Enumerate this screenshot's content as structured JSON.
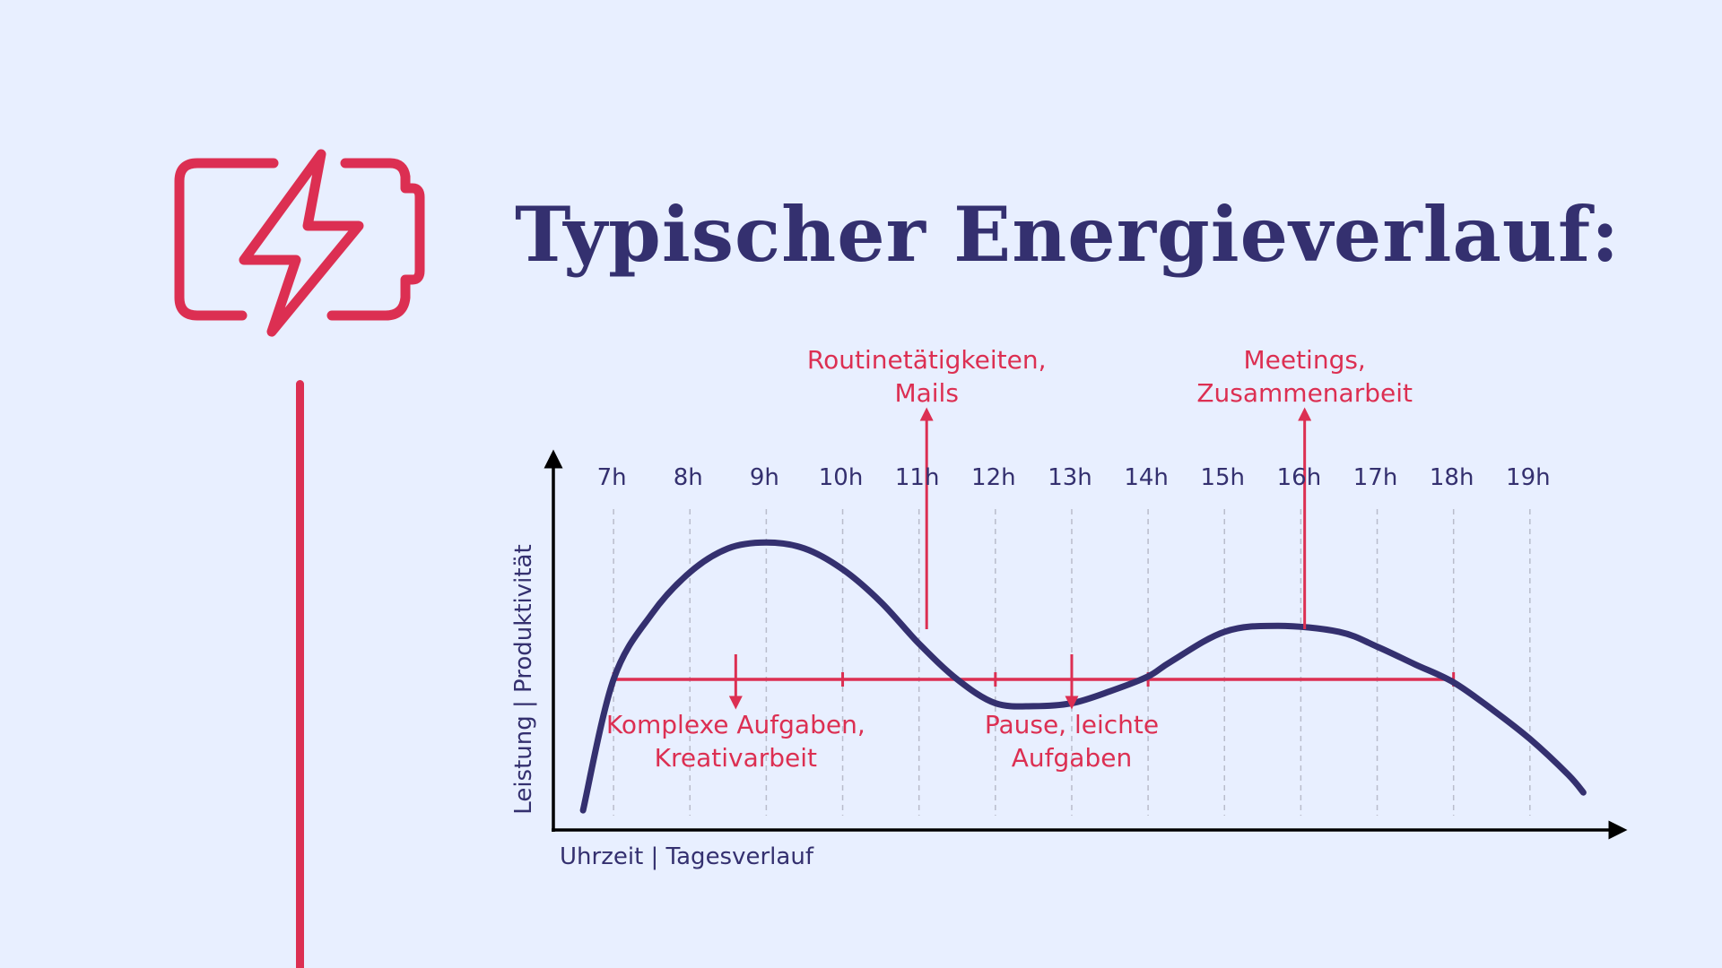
{
  "title": "Typischer Energieverlauf:",
  "icons": {
    "battery": "battery-charging-icon"
  },
  "colors": {
    "background": "#e8efff",
    "navy": "#34306f",
    "accent": "#dc2f52",
    "grid": "#b9bccb",
    "axis": "#000000"
  },
  "chart_data": {
    "type": "line",
    "title": "",
    "xlabel": "Uhrzeit | Tagesverlauf",
    "ylabel": "Leistung | Produktivität",
    "tick_labels": [
      "7h",
      "8h",
      "9h",
      "10h",
      "11h",
      "12h",
      "13h",
      "14h",
      "15h",
      "16h",
      "17h",
      "18h",
      "19h"
    ],
    "x_range": [
      6.2,
      20.2
    ],
    "y_range": [
      0,
      100
    ],
    "grid": "vertical dashed lines at each hour",
    "baseline": {
      "y": 50,
      "x_start": 7,
      "x_end": 18,
      "markers": [
        7,
        10,
        12,
        14,
        18
      ]
    },
    "series": [
      {
        "points": [
          [
            6.6,
            6
          ],
          [
            7.0,
            50
          ],
          [
            7.5,
            72
          ],
          [
            8.0,
            86
          ],
          [
            8.5,
            94
          ],
          [
            9.0,
            96
          ],
          [
            9.5,
            94
          ],
          [
            10.0,
            87
          ],
          [
            10.5,
            76
          ],
          [
            11.0,
            62
          ],
          [
            11.5,
            50
          ],
          [
            12.0,
            42
          ],
          [
            12.5,
            41
          ],
          [
            13.0,
            42
          ],
          [
            13.5,
            46
          ],
          [
            14.0,
            51
          ],
          [
            14.3,
            56
          ],
          [
            15.0,
            66
          ],
          [
            15.7,
            68
          ],
          [
            16.5,
            66
          ],
          [
            17.0,
            61
          ],
          [
            17.5,
            55
          ],
          [
            18.0,
            49
          ],
          [
            18.5,
            40
          ],
          [
            19.0,
            30
          ],
          [
            19.5,
            18
          ],
          [
            19.7,
            12
          ]
        ]
      }
    ],
    "annotations": [
      {
        "text_lines": [
          "Komplexe Aufgaben,",
          "Kreativarbeit"
        ],
        "x": 8.6,
        "direction": "down"
      },
      {
        "text_lines": [
          "Routinetätigkeiten,",
          "Mails"
        ],
        "x": 11.1,
        "direction": "up"
      },
      {
        "text_lines": [
          "Pause, leichte",
          "Aufgaben"
        ],
        "x": 13.0,
        "direction": "down"
      },
      {
        "text_lines": [
          "Meetings,",
          "Zusammenarbeit"
        ],
        "x": 16.05,
        "direction": "up"
      }
    ]
  }
}
